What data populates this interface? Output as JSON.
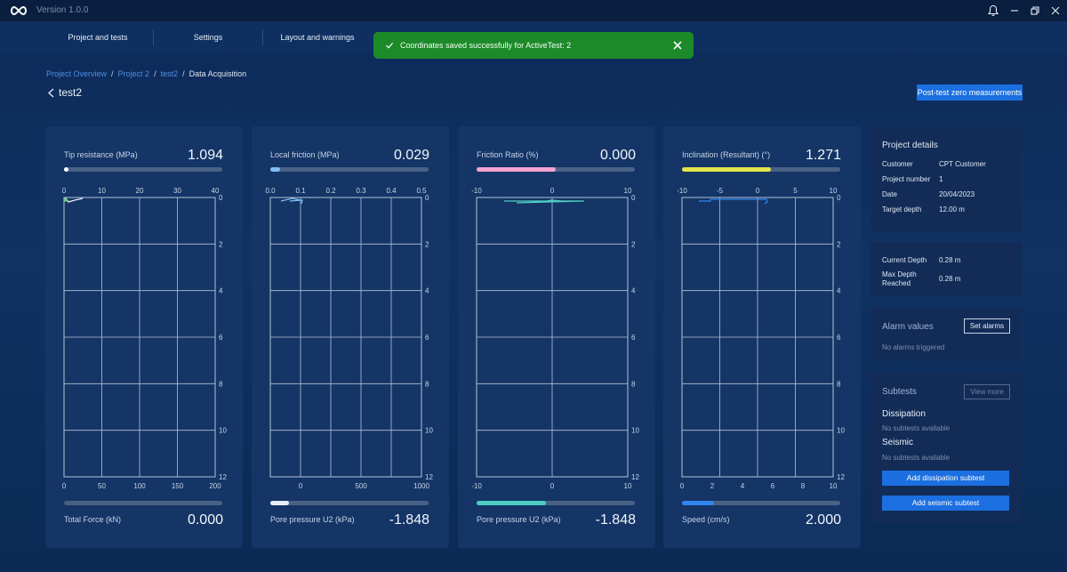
{
  "app": {
    "version": "Version 1.0.0"
  },
  "nav": {
    "tabs": [
      {
        "label": "Project and tests"
      },
      {
        "label": "Settings"
      },
      {
        "label": "Layout and warnings"
      }
    ]
  },
  "toast": {
    "message": "Coordinates saved successfully for ActiveTest: 2",
    "color": "#1d8a2a"
  },
  "breadcrumb": {
    "items": [
      "Project Overview",
      "Project 2",
      "test2"
    ],
    "current": "Data Acquisition"
  },
  "page": {
    "title": "test2",
    "post_test_button": "Post-test zero measurements"
  },
  "cards": [
    {
      "label": "Tip resistance (MPa)",
      "value": "1.094",
      "bar_color": "#ffffff",
      "bar_fraction": 0.02,
      "top_ticks": [
        "0",
        "10",
        "20",
        "30",
        "40"
      ],
      "bottom_ticks": [
        "0",
        "50",
        "100",
        "150",
        "200"
      ],
      "bottom_label": "Total Force (kN)",
      "bottom_value": "0.000",
      "bottom_fraction": 0
    },
    {
      "label": "Local friction (MPa)",
      "value": "0.029",
      "bar_color": "#7fbdf5",
      "bar_fraction": 0.06,
      "top_ticks": [
        "0.0",
        "0.1",
        "0.2",
        "0.3",
        "0.4",
        "0.5"
      ],
      "bottom_ticks": [
        "0",
        "500",
        "1000"
      ],
      "bottom_label": "Pore pressure U2 (kPa)",
      "bottom_value": "-1.848",
      "bottom_fraction": 0.12,
      "bottom_color": "#e8eef8"
    },
    {
      "label": "Friction Ratio (%)",
      "value": "0.000",
      "bar_color": "#f2a4cf",
      "bar_fraction": 0.5,
      "top_ticks": [
        "-10",
        "0",
        "10"
      ],
      "bottom_ticks": [
        "-10",
        "0",
        "10"
      ],
      "bottom_label": "Pore pressure U2 (kPa)",
      "bottom_value": "-1.848",
      "bottom_fraction": 0.44,
      "bottom_color": "#4ecdc4"
    },
    {
      "label": "Inclination (Resultant) (°)",
      "value": "1.271",
      "bar_color": "#e3e54a",
      "bar_fraction": 0.56,
      "top_ticks": [
        "-10",
        "-5",
        "0",
        "5",
        "10"
      ],
      "bottom_ticks": [
        "0",
        "2",
        "4",
        "6",
        "8",
        "10"
      ],
      "bottom_label": "Speed (cm/s)",
      "bottom_value": "2.000",
      "bottom_fraction": 0.2,
      "bottom_color": "#2f86f0"
    }
  ],
  "depth_ticks": [
    "0",
    "2",
    "4",
    "6",
    "8",
    "10",
    "12"
  ],
  "project_details": {
    "title": "Project details",
    "rows": [
      {
        "key": "Customer",
        "value": "CPT Customer"
      },
      {
        "key": "Project number",
        "value": "1"
      },
      {
        "key": "Date",
        "value": "20/04/2023"
      },
      {
        "key": "Target depth",
        "value": "12.00 m"
      }
    ]
  },
  "depth": {
    "current_label": "Current Depth",
    "current_value": "0.28 m",
    "max_label_1": "Max Depth",
    "max_label_2": "Reached",
    "max_value": "0.28 m"
  },
  "alarms": {
    "title": "Alarm values",
    "button": "Set alarms",
    "status": "No alarms triggered"
  },
  "subtests": {
    "title": "Subtests",
    "view_more": "View more",
    "dissipation_title": "Dissipation",
    "dissipation_status": "No subtests available",
    "seismic_title": "Seismic",
    "seismic_status": "No subtests available",
    "add_dissipation": "Add dissipation subtest",
    "add_seismic": "Add seismic subtest"
  }
}
